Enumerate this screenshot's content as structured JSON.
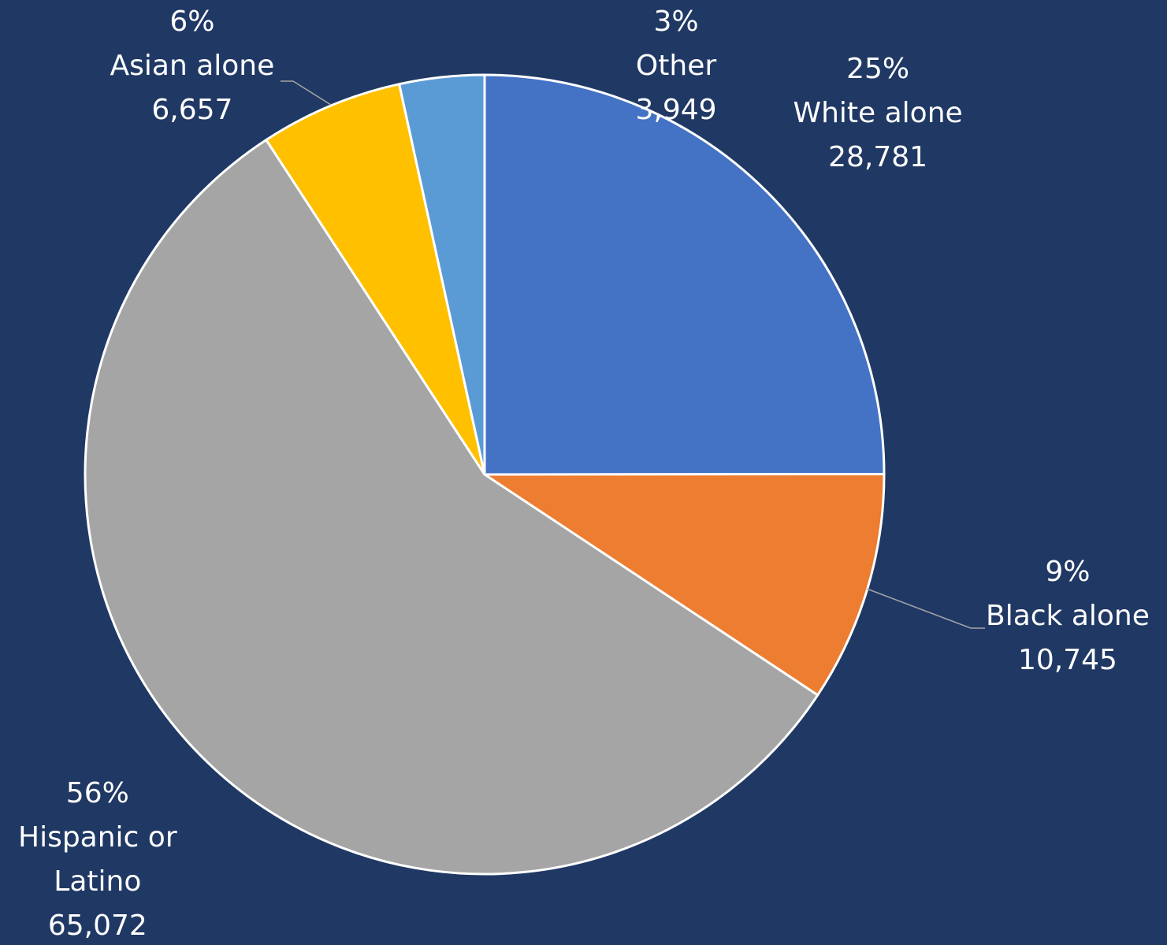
{
  "chart_data": {
    "type": "pie",
    "background": "#203864",
    "slices": [
      {
        "name": "White alone",
        "name_lines": [
          "White alone"
        ],
        "value": 28781,
        "value_label": "28,781",
        "percent_label": "25%",
        "color": "#4472C4"
      },
      {
        "name": "Black alone",
        "name_lines": [
          "Black alone"
        ],
        "value": 10745,
        "value_label": "10,745",
        "percent_label": "9%",
        "color": "#ED7D31"
      },
      {
        "name": "Hispanic or Latino",
        "name_lines": [
          "Hispanic or",
          "Latino"
        ],
        "value": 65072,
        "value_label": "65,072",
        "percent_label": "56%",
        "color": "#A5A5A5"
      },
      {
        "name": "Asian alone",
        "name_lines": [
          "Asian alone"
        ],
        "value": 6657,
        "value_label": "6,657",
        "percent_label": "6%",
        "color": "#FFC000"
      },
      {
        "name": "Other",
        "name_lines": [
          "Other"
        ],
        "value": 3949,
        "value_label": "3,949",
        "percent_label": "3%",
        "color": "#5B9BD5"
      }
    ]
  }
}
